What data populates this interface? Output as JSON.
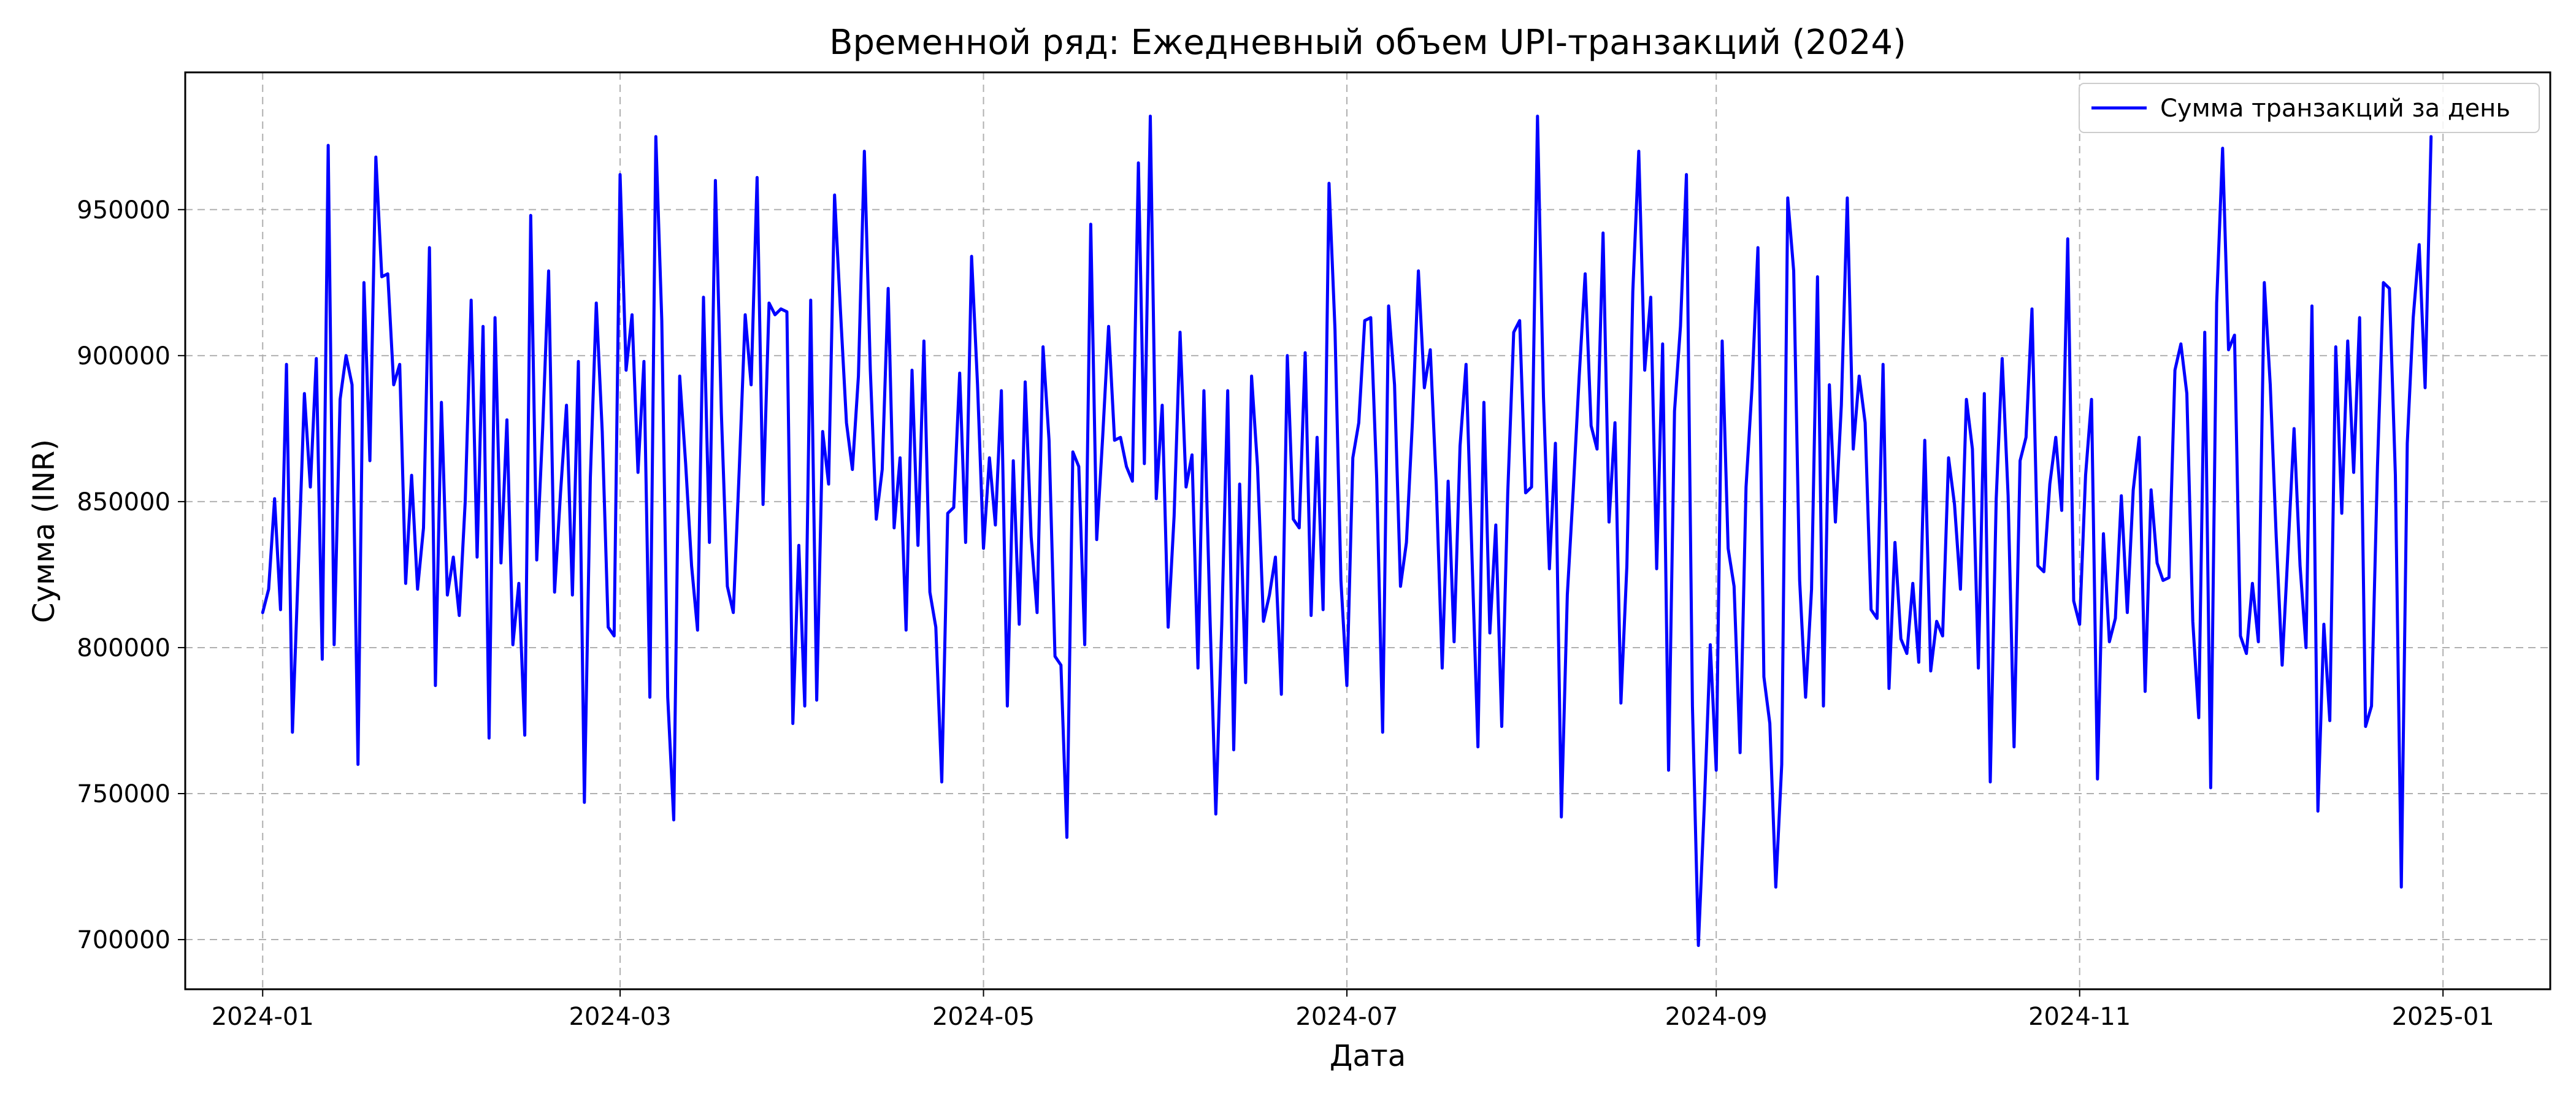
{
  "chart_data": {
    "type": "line",
    "title": "Временной ряд: Ежедневный объем UPI-транзакций (2024)",
    "xlabel": "Дата",
    "ylabel": "Сумма (INR)",
    "x_start_date": "2024-01-01",
    "x_range": [
      "2023-12-19",
      "2025-01-19"
    ],
    "ylim": [
      683000,
      997000
    ],
    "grid": true,
    "legend": "top-right",
    "x_ticks": [
      "2024-01",
      "2024-03",
      "2024-05",
      "2024-07",
      "2024-09",
      "2024-11",
      "2025-01"
    ],
    "y_ticks": [
      700000,
      750000,
      800000,
      850000,
      900000,
      950000
    ],
    "series": [
      {
        "name": "Сумма транзакций за день",
        "color": "#0000ff",
        "values": [
          812000,
          820000,
          851000,
          813000,
          897000,
          771000,
          828000,
          887000,
          855000,
          899000,
          796000,
          972000,
          801000,
          885000,
          900000,
          890000,
          760000,
          925000,
          864000,
          968000,
          927000,
          928000,
          890000,
          897000,
          822000,
          859000,
          820000,
          841000,
          937000,
          787000,
          884000,
          818000,
          831000,
          811000,
          850000,
          919000,
          831000,
          910000,
          769000,
          913000,
          829000,
          878000,
          801000,
          822000,
          770000,
          948000,
          830000,
          875000,
          929000,
          819000,
          853000,
          883000,
          818000,
          898000,
          747000,
          858000,
          918000,
          874000,
          807000,
          804000,
          962000,
          895000,
          914000,
          860000,
          898000,
          783000,
          975000,
          912000,
          783000,
          741000,
          893000,
          863000,
          828000,
          806000,
          920000,
          836000,
          960000,
          880000,
          821000,
          812000,
          861000,
          914000,
          890000,
          961000,
          849000,
          918000,
          914000,
          916000,
          915000,
          774000,
          835000,
          780000,
          919000,
          782000,
          874000,
          856000,
          955000,
          915000,
          877000,
          861000,
          893000,
          970000,
          895000,
          844000,
          861000,
          923000,
          841000,
          865000,
          806000,
          895000,
          835000,
          905000,
          819000,
          807000,
          754000,
          846000,
          848000,
          894000,
          836000,
          934000,
          890000,
          834000,
          865000,
          842000,
          888000,
          780000,
          864000,
          808000,
          891000,
          838000,
          812000,
          903000,
          871000,
          797000,
          794000,
          735000,
          867000,
          862000,
          801000,
          945000,
          837000,
          872000,
          910000,
          871000,
          872000,
          862000,
          857000,
          966000,
          863000,
          982000,
          851000,
          883000,
          807000,
          845000,
          908000,
          855000,
          866000,
          793000,
          888000,
          812000,
          743000,
          808000,
          888000,
          765000,
          856000,
          788000,
          893000,
          862000,
          809000,
          818000,
          831000,
          784000,
          900000,
          844000,
          841000,
          901000,
          811000,
          872000,
          813000,
          959000,
          909000,
          823000,
          787000,
          865000,
          877000,
          912000,
          913000,
          858000,
          771000,
          917000,
          890000,
          821000,
          836000,
          877000,
          929000,
          889000,
          902000,
          856000,
          793000,
          857000,
          802000,
          869000,
          897000,
          831000,
          766000,
          884000,
          805000,
          842000,
          773000,
          853000,
          908000,
          912000,
          853000,
          855000,
          982000,
          886000,
          827000,
          870000,
          742000,
          818000,
          854000,
          893000,
          928000,
          876000,
          868000,
          942000,
          843000,
          877000,
          781000,
          828000,
          922000,
          970000,
          895000,
          920000,
          827000,
          904000,
          758000,
          881000,
          910000,
          962000,
          780000,
          698000,
          746000,
          801000,
          758000,
          905000,
          834000,
          821000,
          764000,
          855000,
          889000,
          937000,
          790000,
          774000,
          718000,
          760000,
          954000,
          929000,
          823000,
          783000,
          820000,
          927000,
          780000,
          890000,
          843000,
          883000,
          954000,
          868000,
          893000,
          877000,
          813000,
          810000,
          897000,
          786000,
          836000,
          803000,
          798000,
          822000,
          795000,
          871000,
          792000,
          809000,
          804000,
          865000,
          849000,
          820000,
          885000,
          868000,
          793000,
          887000,
          754000,
          851000,
          899000,
          852000,
          766000,
          864000,
          872000,
          916000,
          828000,
          826000,
          856000,
          872000,
          847000,
          940000,
          816000,
          808000,
          859000,
          885000,
          755000,
          839000,
          802000,
          810000,
          852000,
          812000,
          854000,
          872000,
          785000,
          854000,
          829000,
          823000,
          824000,
          895000,
          904000,
          887000,
          809000,
          776000,
          908000,
          752000,
          918000,
          971000,
          902000,
          907000,
          804000,
          798000,
          822000,
          802000,
          925000,
          890000,
          838000,
          794000,
          834000,
          875000,
          828000,
          800000,
          917000,
          744000,
          808000,
          775000,
          903000,
          846000,
          905000,
          860000,
          913000,
          773000,
          780000,
          862000,
          925000,
          923000,
          859000,
          718000,
          870000,
          913000,
          938000,
          889000,
          975000
        ]
      }
    ]
  }
}
